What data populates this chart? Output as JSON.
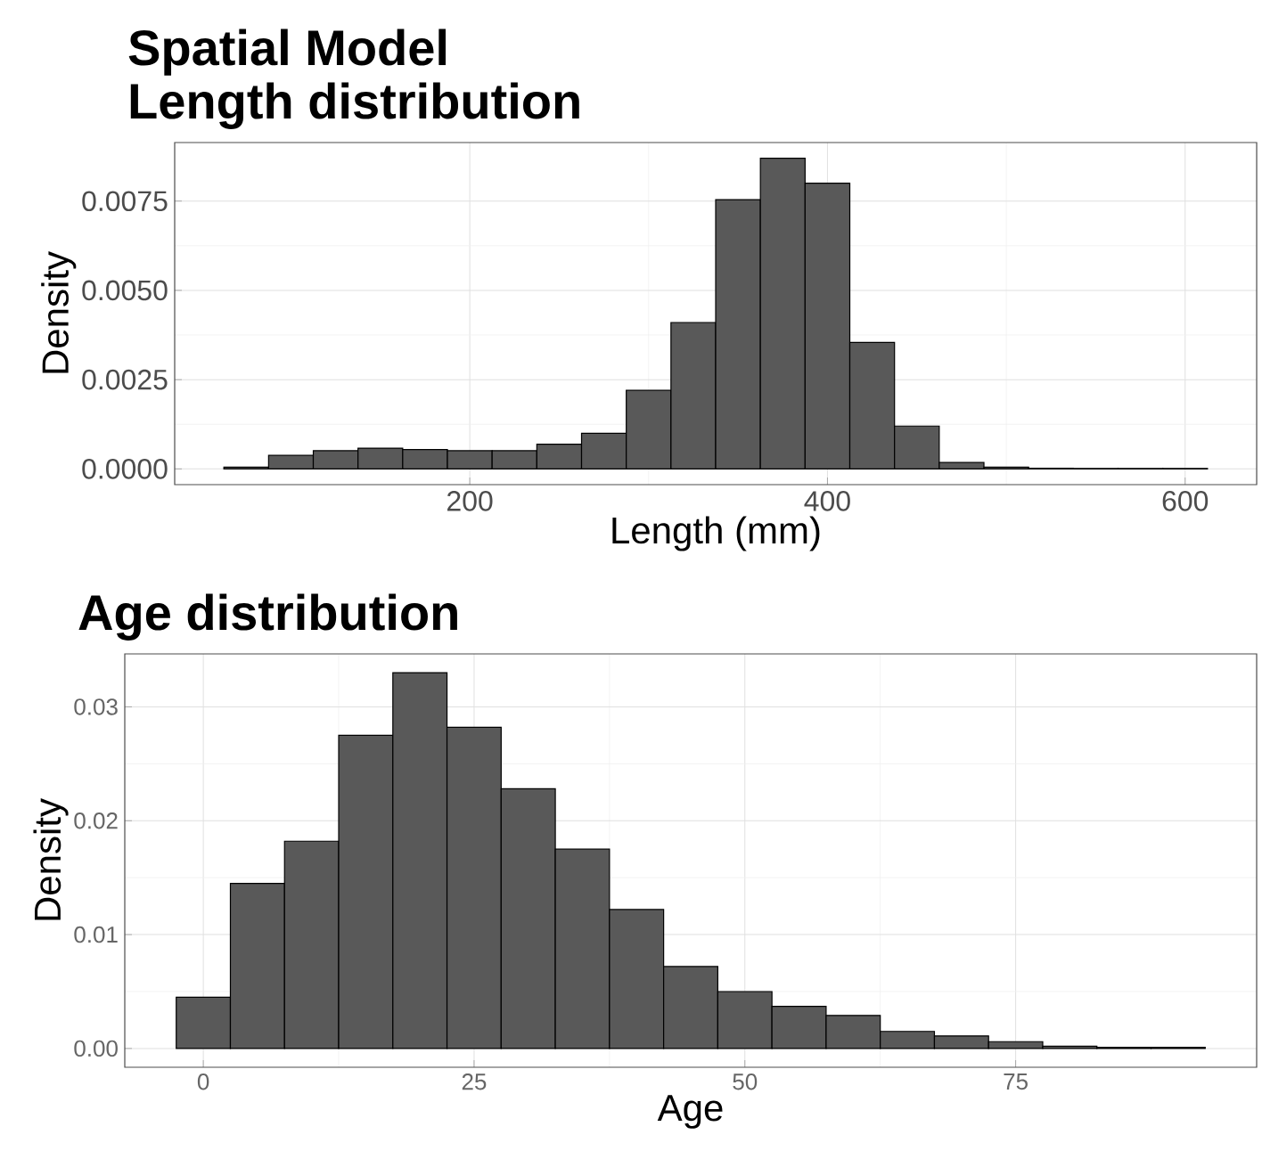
{
  "chart_data": [
    {
      "type": "histogram",
      "title": "Spatial Model",
      "subtitle": "Length distribution",
      "xlabel": "Length (mm)",
      "ylabel": "Density",
      "bins": [
        62.5,
        87.5,
        112.5,
        137.5,
        162.5,
        187.5,
        212.5,
        237.5,
        262.5,
        287.5,
        312.5,
        337.5,
        362.5,
        387.5,
        412.5,
        437.5,
        462.5,
        487.5,
        512.5,
        537.5,
        562.5,
        587.5,
        612.5
      ],
      "values": [
        5e-05,
        0.00038,
        0.00051,
        0.00058,
        0.00054,
        0.00051,
        0.00051,
        0.00069,
        0.001,
        0.0022,
        0.0041,
        0.00754,
        0.0087,
        0.008,
        0.00354,
        0.0012,
        0.00018,
        5e-05,
        2e-05,
        1e-05,
        1e-05,
        1e-05
      ],
      "color": "#595959",
      "xlim": [
        35,
        640
      ],
      "ylim": [
        -0.00044,
        0.00914
      ],
      "xticks": [
        200,
        400,
        600
      ],
      "yticks": [
        {
          "value": 0,
          "label": "0.0000"
        },
        {
          "value": 0.0025,
          "label": "0.0025"
        },
        {
          "value": 0.005,
          "label": "0.0050"
        },
        {
          "value": 0.0075,
          "label": "0.0075"
        }
      ],
      "grid": true
    },
    {
      "type": "histogram",
      "title": "Age distribution",
      "xlabel": "Age",
      "ylabel": "Density",
      "bins": [
        -2.5,
        2.5,
        7.5,
        12.5,
        17.5,
        22.5,
        27.5,
        32.5,
        37.5,
        42.5,
        47.5,
        52.5,
        57.5,
        62.5,
        67.5,
        72.5,
        77.5,
        82.5,
        87.5,
        92.5
      ],
      "values": [
        0.0045,
        0.0145,
        0.0182,
        0.0275,
        0.033,
        0.0282,
        0.0228,
        0.0175,
        0.0122,
        0.0072,
        0.005,
        0.0037,
        0.0029,
        0.0015,
        0.0011,
        0.0006,
        0.0002,
        0.0001,
        0.0001
      ],
      "color": "#595959",
      "xlim": [
        -7.25,
        97.25
      ],
      "ylim": [
        -0.00165,
        0.03465
      ],
      "xticks": [
        0,
        25,
        50,
        75
      ],
      "yticks": [
        {
          "value": 0,
          "label": "0.00"
        },
        {
          "value": 0.01,
          "label": "0.01"
        },
        {
          "value": 0.02,
          "label": "0.02"
        },
        {
          "value": 0.03,
          "label": "0.03"
        }
      ],
      "grid": true
    }
  ]
}
